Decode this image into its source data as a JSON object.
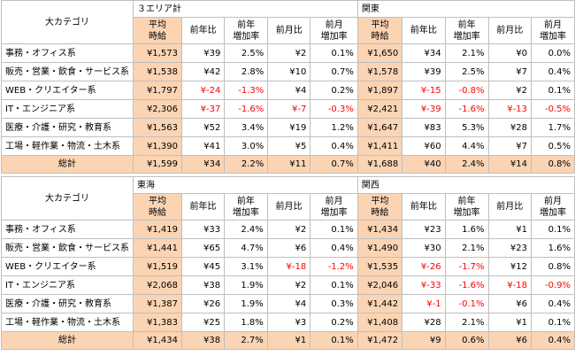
{
  "colors": {
    "peach": "#fbd4b4",
    "border": "#bfbfbf",
    "negative": "#ff0000"
  },
  "tables": [
    {
      "category_header": "大カテゴリ",
      "areas": [
        "３エリア計",
        "関東"
      ],
      "sub_headers": [
        "平均\n時給",
        "前年比",
        "前年\n増加率",
        "前月比",
        "前月\n増加率",
        "平均\n時給",
        "前年比",
        "前年\n増加率",
        "前月比",
        "前月\n増加率"
      ],
      "rows": [
        {
          "name": "事務・オフィス系",
          "cells": [
            "¥1,573",
            "¥39",
            "2.5%",
            "¥2",
            "0.1%",
            "¥1,650",
            "¥34",
            "2.1%",
            "¥0",
            "0.0%"
          ]
        },
        {
          "name": "販売・営業・飲食・サービス系",
          "cells": [
            "¥1,538",
            "¥42",
            "2.8%",
            "¥10",
            "0.7%",
            "¥1,578",
            "¥39",
            "2.5%",
            "¥7",
            "0.4%"
          ]
        },
        {
          "name": "WEB・クリエイター系",
          "cells": [
            "¥1,797",
            "¥-24",
            "-1.3%",
            "¥4",
            "0.2%",
            "¥1,897",
            "¥-15",
            "-0.8%",
            "¥2",
            "0.1%"
          ]
        },
        {
          "name": "IT・エンジニア系",
          "cells": [
            "¥2,306",
            "¥-37",
            "-1.6%",
            "¥-7",
            "-0.3%",
            "¥2,421",
            "¥-39",
            "-1.6%",
            "¥-13",
            "-0.5%"
          ]
        },
        {
          "name": "医療・介護・研究・教育系",
          "cells": [
            "¥1,563",
            "¥52",
            "3.4%",
            "¥19",
            "1.2%",
            "¥1,647",
            "¥83",
            "5.3%",
            "¥28",
            "1.7%"
          ]
        },
        {
          "name": "工場・軽作業・物流・土木系",
          "cells": [
            "¥1,390",
            "¥41",
            "3.0%",
            "¥5",
            "0.4%",
            "¥1,411",
            "¥60",
            "4.4%",
            "¥7",
            "0.5%"
          ]
        }
      ],
      "total": {
        "name": "総計",
        "cells": [
          "¥1,599",
          "¥34",
          "2.2%",
          "¥11",
          "0.7%",
          "¥1,688",
          "¥40",
          "2.4%",
          "¥14",
          "0.8%"
        ]
      }
    },
    {
      "category_header": "大カテゴリ",
      "areas": [
        "東海",
        "関西"
      ],
      "sub_headers": [
        "平均\n時給",
        "前年比",
        "前年\n増加率",
        "前月比",
        "前月\n増加率",
        "平均\n時給",
        "前年比",
        "前年\n増加率",
        "前月比",
        "前月\n増加率"
      ],
      "rows": [
        {
          "name": "事務・オフィス系",
          "cells": [
            "¥1,419",
            "¥33",
            "2.4%",
            "¥2",
            "0.1%",
            "¥1,434",
            "¥23",
            "1.6%",
            "¥1",
            "0.1%"
          ]
        },
        {
          "name": "販売・営業・飲食・サービス系",
          "cells": [
            "¥1,441",
            "¥65",
            "4.7%",
            "¥6",
            "0.4%",
            "¥1,490",
            "¥30",
            "2.1%",
            "¥23",
            "1.6%"
          ]
        },
        {
          "name": "WEB・クリエイター系",
          "cells": [
            "¥1,519",
            "¥45",
            "3.1%",
            "¥-18",
            "-1.2%",
            "¥1,535",
            "¥-26",
            "-1.7%",
            "¥12",
            "0.8%"
          ]
        },
        {
          "name": "IT・エンジニア系",
          "cells": [
            "¥2,068",
            "¥38",
            "1.9%",
            "¥2",
            "0.1%",
            "¥2,046",
            "¥-33",
            "-1.6%",
            "¥-18",
            "-0.9%"
          ]
        },
        {
          "name": "医療・介護・研究・教育系",
          "cells": [
            "¥1,387",
            "¥26",
            "1.9%",
            "¥4",
            "0.3%",
            "¥1,442",
            "¥-1",
            "-0.1%",
            "¥6",
            "0.4%"
          ]
        },
        {
          "name": "工場・軽作業・物流・土木系",
          "cells": [
            "¥1,383",
            "¥25",
            "1.8%",
            "¥3",
            "0.2%",
            "¥1,408",
            "¥28",
            "2.1%",
            "¥1",
            "0.1%"
          ]
        }
      ],
      "total": {
        "name": "総計",
        "cells": [
          "¥1,434",
          "¥38",
          "2.7%",
          "¥1",
          "0.1%",
          "¥1,472",
          "¥9",
          "0.6%",
          "¥6",
          "0.4%"
        ]
      }
    }
  ]
}
